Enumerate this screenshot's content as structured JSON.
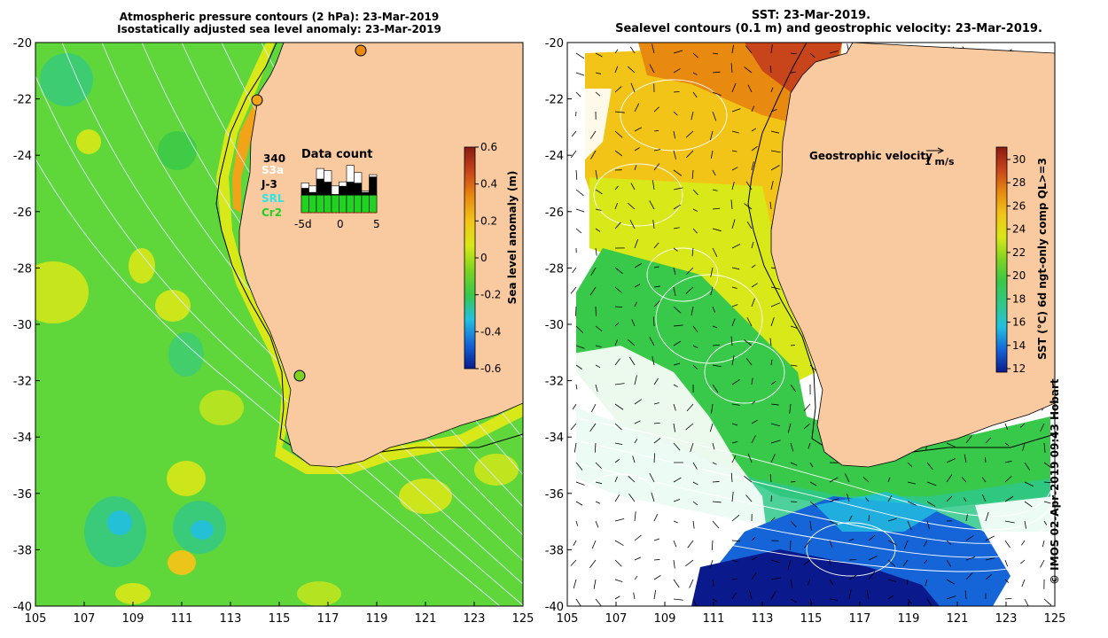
{
  "left_panel": {
    "title_line1": "Atmospheric pressure contours (2 hPa): 23-Mar-2019",
    "title_line2": "Isostatically adjusted sea level anomaly: 23-Mar-2019",
    "colorbar": {
      "label": "Sea level anomaly (m)",
      "ticks": [
        "0.6",
        "0.4",
        "0.2",
        "0",
        "-0.2",
        "-0.4",
        "-0.6"
      ],
      "colors": [
        "#0a1a8c",
        "#1565d8",
        "#22c0e0",
        "#38c84a",
        "#7ed321",
        "#d8e818",
        "#f2c418",
        "#e88a10",
        "#c8441a",
        "#8a1a10"
      ]
    },
    "data_count": {
      "title": "Data count",
      "legend": [
        {
          "label": "340",
          "color": "#000000"
        },
        {
          "label": "S3a",
          "color": "#ffffff"
        },
        {
          "label": "J-3",
          "color": "#000000"
        },
        {
          "label": "SRL",
          "color": "#2fe4e4"
        },
        {
          "label": "Cr2",
          "color": "#22d222"
        }
      ],
      "xticks": [
        "-5d",
        "0",
        "5"
      ],
      "bar_white": [
        0.58,
        0.52,
        0.86,
        0.82,
        0.52,
        0.6,
        0.92,
        0.78,
        0.42,
        0.74
      ],
      "bar_black": [
        0.48,
        0.4,
        0.66,
        0.6,
        0.36,
        0.52,
        0.6,
        0.58,
        0.4,
        0.7
      ],
      "bar_green": [
        0.34,
        0.34,
        0.34,
        0.34,
        0.34,
        0.34,
        0.34,
        0.34,
        0.34,
        0.34
      ]
    }
  },
  "right_panel": {
    "title_line1": "SST: 23-Mar-2019.",
    "title_line2": "Sealevel contours (0.1 m) and geostrophic velocity: 23-Mar-2019.",
    "colorbar": {
      "label": "SST (°C) 6d ngt-only comp QL>=3",
      "ticks": [
        "30",
        "28",
        "26",
        "24",
        "22",
        "20",
        "18",
        "16",
        "14",
        "12"
      ],
      "colors": [
        "#0a1a8c",
        "#1565d8",
        "#22c0e0",
        "#2fc88a",
        "#38c84a",
        "#7ed321",
        "#d8e818",
        "#f2c418",
        "#e88a10",
        "#c8441a",
        "#8a1a10"
      ]
    },
    "velocity_key": {
      "label": "Geostrophic velocity",
      "scale": "1 m/s"
    }
  },
  "axes": {
    "lat_ticks": [
      "-20",
      "-22",
      "-24",
      "-26",
      "-28",
      "-30",
      "-32",
      "-34",
      "-36",
      "-38",
      "-40"
    ],
    "lon_ticks": [
      "105",
      "107",
      "109",
      "111",
      "113",
      "115",
      "117",
      "119",
      "121",
      "123",
      "125"
    ]
  },
  "colors": {
    "land": "#f9c9a0",
    "coast": "#000000",
    "contour": "#ffffff",
    "pressure": "#dde8ff"
  },
  "credit": "© IMOS 02-Apr-2019 09:43 Hobart"
}
